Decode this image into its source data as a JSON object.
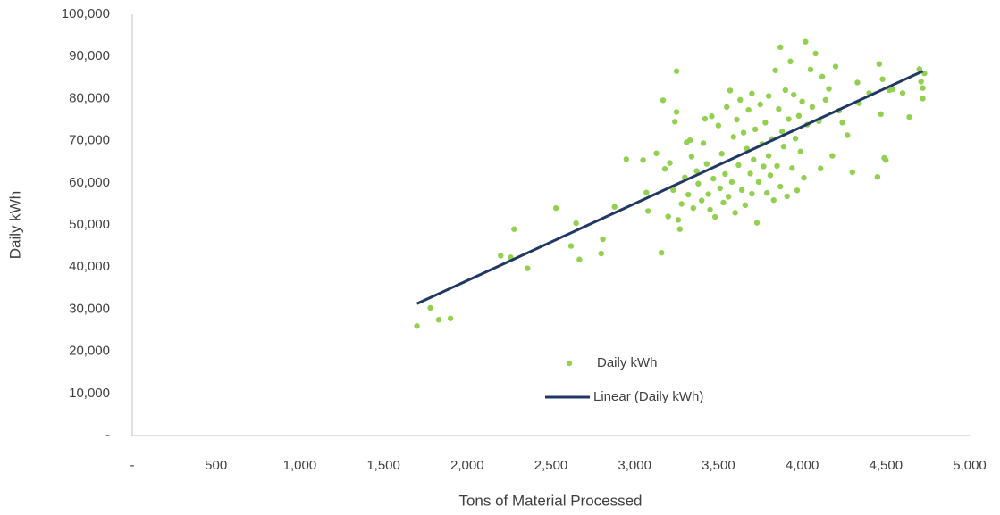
{
  "chart_data": {
    "type": "scatter",
    "x_label": "Tons of Material Processed",
    "y_label": "Daily kWh",
    "xlim": [
      0,
      5000
    ],
    "ylim": [
      0,
      100000
    ],
    "xticks": [
      {
        "value": 0,
        "label": "-"
      },
      500,
      {
        "value": 1000,
        "label": "1,000"
      },
      {
        "value": 1500,
        "label": "1,500"
      },
      {
        "value": 2000,
        "label": "2,000"
      },
      {
        "value": 2500,
        "label": "2,500"
      },
      {
        "value": 3000,
        "label": "3,000"
      },
      {
        "value": 3500,
        "label": "3,500"
      },
      {
        "value": 4000,
        "label": "4,000"
      },
      {
        "value": 4500,
        "label": "4,500"
      },
      {
        "value": 5000,
        "label": "5,000"
      }
    ],
    "yticks": [
      {
        "value": 0,
        "label": "-"
      },
      {
        "value": 10000,
        "label": "10,000"
      },
      {
        "value": 20000,
        "label": "20,000"
      },
      {
        "value": 30000,
        "label": "30,000"
      },
      {
        "value": 40000,
        "label": "40,000"
      },
      {
        "value": 50000,
        "label": "50,000"
      },
      {
        "value": 60000,
        "label": "60,000"
      },
      {
        "value": 70000,
        "label": "70,000"
      },
      {
        "value": 80000,
        "label": "80,000"
      },
      {
        "value": 90000,
        "label": "90,000"
      },
      {
        "value": 100000,
        "label": "100,000"
      }
    ],
    "grid": false,
    "legend": "lower center",
    "series": [
      {
        "name": "Daily kWh",
        "color": "#92d050",
        "x": [
          1700,
          1780,
          1830,
          1900,
          2200,
          2260,
          2280,
          2360,
          2530,
          2620,
          2650,
          2670,
          2800,
          2810,
          2880,
          2950,
          3050,
          3070,
          3080,
          3130,
          3160,
          3170,
          3180,
          3200,
          3210,
          3230,
          3240,
          3250,
          3250,
          3260,
          3270,
          3280,
          3300,
          3310,
          3320,
          3330,
          3340,
          3350,
          3370,
          3380,
          3400,
          3410,
          3420,
          3430,
          3440,
          3450,
          3460,
          3470,
          3480,
          3500,
          3510,
          3520,
          3530,
          3540,
          3550,
          3560,
          3570,
          3580,
          3590,
          3600,
          3610,
          3620,
          3630,
          3640,
          3650,
          3660,
          3670,
          3680,
          3690,
          3700,
          3700,
          3710,
          3720,
          3730,
          3740,
          3750,
          3760,
          3770,
          3780,
          3790,
          3800,
          3800,
          3810,
          3820,
          3830,
          3840,
          3850,
          3860,
          3870,
          3870,
          3880,
          3890,
          3900,
          3910,
          3920,
          3930,
          3940,
          3950,
          3960,
          3970,
          3980,
          3990,
          4000,
          4010,
          4020,
          4030,
          4050,
          4060,
          4080,
          4100,
          4110,
          4120,
          4140,
          4160,
          4180,
          4200,
          4220,
          4240,
          4270,
          4300,
          4330,
          4340,
          4400,
          4450,
          4460,
          4470,
          4480,
          4490,
          4500,
          4520,
          4540,
          4600,
          4640,
          4700,
          4710,
          4720,
          4720,
          4730
        ],
        "values": [
          26000,
          30300,
          27500,
          27800,
          42700,
          42300,
          49000,
          39700,
          54000,
          45000,
          50400,
          41800,
          43200,
          46600,
          54300,
          65600,
          65400,
          57700,
          53300,
          67000,
          43400,
          79600,
          63300,
          52000,
          64700,
          58300,
          74500,
          86500,
          76800,
          51200,
          49000,
          55000,
          61300,
          69600,
          57200,
          70100,
          66200,
          54000,
          62800,
          59800,
          55800,
          69400,
          75200,
          64500,
          57300,
          53600,
          75800,
          61000,
          51900,
          73600,
          58700,
          66900,
          55300,
          62100,
          78000,
          56700,
          81900,
          60200,
          70900,
          52900,
          75000,
          64200,
          79700,
          58300,
          71900,
          54700,
          68100,
          77300,
          62200,
          81200,
          57400,
          65500,
          72700,
          50500,
          60200,
          78600,
          69200,
          63900,
          74300,
          57600,
          66400,
          80600,
          61800,
          70400,
          55900,
          86700,
          64000,
          77500,
          59100,
          92200,
          72200,
          68600,
          82000,
          56800,
          75100,
          88800,
          63500,
          80900,
          70500,
          58200,
          75900,
          67400,
          79300,
          61200,
          93500,
          73800,
          86900,
          78000,
          90700,
          74600,
          63400,
          85200,
          79700,
          82300,
          66400,
          87600,
          77100,
          74300,
          71300,
          62500,
          83800,
          78900,
          81300,
          61400,
          88200,
          76300,
          84600,
          65900,
          65400,
          82000,
          82200,
          81300,
          75600,
          87000,
          84000,
          80000,
          82500,
          86000
        ]
      },
      {
        "name": "Linear (Daily kWh)",
        "color": "#203864",
        "type": "line",
        "x": [
          1700,
          4720
        ],
        "values": [
          31300,
          86500
        ]
      }
    ]
  }
}
